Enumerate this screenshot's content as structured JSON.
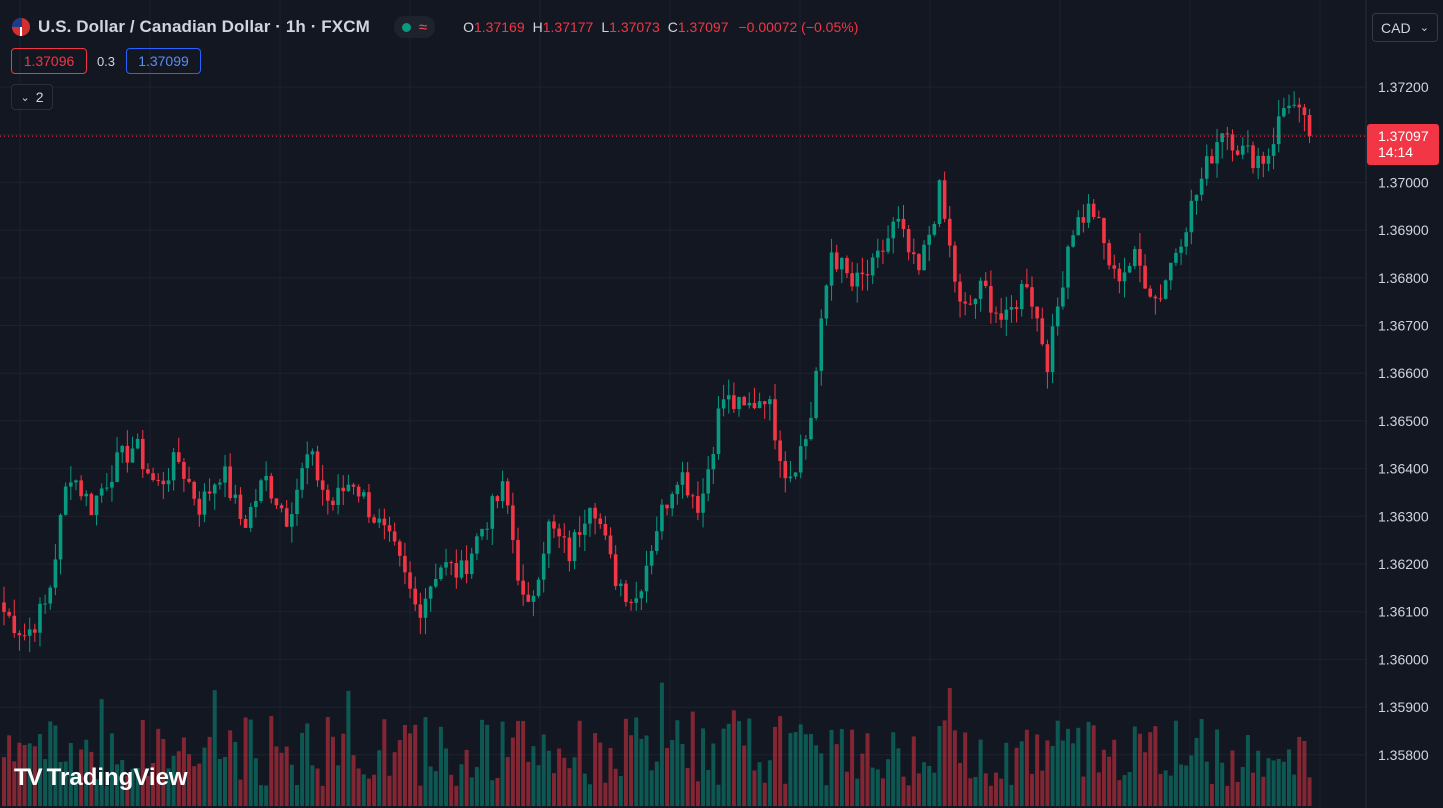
{
  "header": {
    "symbol_title": "U.S. Dollar / Canadian Dollar · 1h · FXCM",
    "flag_icon": "us-flag-icon",
    "status_wave": "≈",
    "ohlc": {
      "o_label": "O",
      "o_value": "1.37169",
      "h_label": "H",
      "h_value": "1.37177",
      "l_label": "L",
      "l_value": "1.37073",
      "c_label": "C",
      "c_value": "1.37097",
      "change": "−0.00072 (−0.05%)"
    }
  },
  "quote": {
    "bid": "1.37096",
    "spread": "0.3",
    "ask": "1.37099"
  },
  "indicators": {
    "collapse_count": "2"
  },
  "currency_selector": {
    "value": "CAD"
  },
  "last_price": {
    "price": "1.37097",
    "countdown": "14:14"
  },
  "branding": {
    "logo_text": "TradingView"
  },
  "colors": {
    "up": "#089981",
    "down": "#f23645",
    "background": "#131722",
    "grid": "#1e222d"
  },
  "chart_data": {
    "type": "candlestick",
    "title": "U.S. Dollar / Canadian Dollar · 1h · FXCM",
    "xlabel": "",
    "ylabel": "",
    "y_ticks": [
      "1.37200",
      "1.37100",
      "1.37000",
      "1.36900",
      "1.36800",
      "1.36700",
      "1.36600",
      "1.36500",
      "1.36400",
      "1.36300",
      "1.36200",
      "1.36100",
      "1.36000",
      "1.35900",
      "1.35800"
    ],
    "ylim": [
      1.3575,
      1.3725
    ],
    "grid": true,
    "last_price": 1.37097,
    "close_path": [
      1.361,
      1.3605,
      1.3612,
      1.364,
      1.3632,
      1.364,
      1.3645,
      1.3636,
      1.3642,
      1.3632,
      1.364,
      1.3628,
      1.3638,
      1.363,
      1.3643,
      1.3632,
      1.3638,
      1.363,
      1.3622,
      1.361,
      1.362,
      1.3618,
      1.3628,
      1.3636,
      1.3608,
      1.3628,
      1.3622,
      1.3635,
      1.3618,
      1.3612,
      1.3628,
      1.364,
      1.3632,
      1.3655,
      1.3652,
      1.3656,
      1.3638,
      1.3648,
      1.3686,
      1.3678,
      1.3682,
      1.3692,
      1.368,
      1.3698,
      1.3672,
      1.3678,
      1.367,
      1.368,
      1.3662,
      1.369,
      1.3695,
      1.368,
      1.3684,
      1.3675,
      1.3688,
      1.37,
      1.3712,
      1.3706,
      1.3705,
      1.3718,
      1.37097
    ],
    "volume_scale_note": ""
  }
}
